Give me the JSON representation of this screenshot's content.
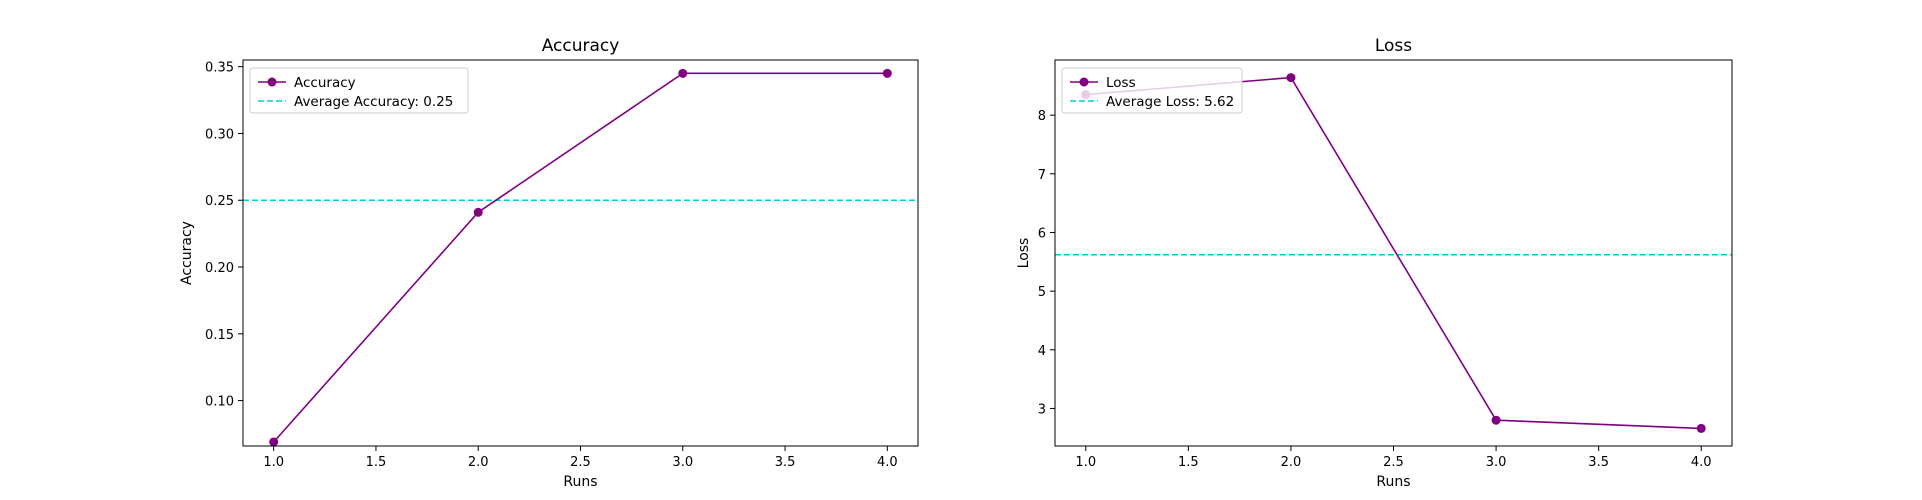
{
  "chart_data": [
    {
      "type": "line",
      "title": "Accuracy",
      "xlabel": "Runs",
      "ylabel": "Accuracy",
      "x": [
        1.0,
        2.0,
        3.0,
        4.0
      ],
      "xlim": [
        0.85,
        4.15
      ],
      "ylim": [
        0.066,
        0.355
      ],
      "xticks": [
        1.0,
        1.5,
        2.0,
        2.5,
        3.0,
        3.5,
        4.0
      ],
      "xtick_labels": [
        "1.0",
        "1.5",
        "2.0",
        "2.5",
        "3.0",
        "3.5",
        "4.0"
      ],
      "yticks": [
        0.1,
        0.15,
        0.2,
        0.25,
        0.3,
        0.35
      ],
      "ytick_labels": [
        "0.10",
        "0.15",
        "0.20",
        "0.25",
        "0.30",
        "0.35"
      ],
      "series": [
        {
          "name": "Accuracy",
          "values": [
            0.069,
            0.241,
            0.345,
            0.345
          ],
          "color": "#800080"
        }
      ],
      "hline": {
        "name": "Average Accuracy: 0.25",
        "value": 0.25,
        "color": "#00CED1"
      },
      "legend": "top-left",
      "grid": false
    },
    {
      "type": "line",
      "title": "Loss",
      "xlabel": "Runs",
      "ylabel": "Loss",
      "x": [
        1.0,
        2.0,
        3.0,
        4.0
      ],
      "xlim": [
        0.85,
        4.15
      ],
      "ylim": [
        2.36,
        8.94
      ],
      "xticks": [
        1.0,
        1.5,
        2.0,
        2.5,
        3.0,
        3.5,
        4.0
      ],
      "xtick_labels": [
        "1.0",
        "1.5",
        "2.0",
        "2.5",
        "3.0",
        "3.5",
        "4.0"
      ],
      "yticks": [
        3,
        4,
        5,
        6,
        7,
        8
      ],
      "ytick_labels": [
        "3",
        "4",
        "5",
        "6",
        "7",
        "8"
      ],
      "series": [
        {
          "name": "Loss",
          "values": [
            8.35,
            8.64,
            2.8,
            2.66
          ],
          "color": "#800080"
        }
      ],
      "hline": {
        "name": "Average Loss: 5.62",
        "value": 5.62,
        "color": "#00CED1"
      },
      "legend": "top-left",
      "grid": false
    }
  ]
}
